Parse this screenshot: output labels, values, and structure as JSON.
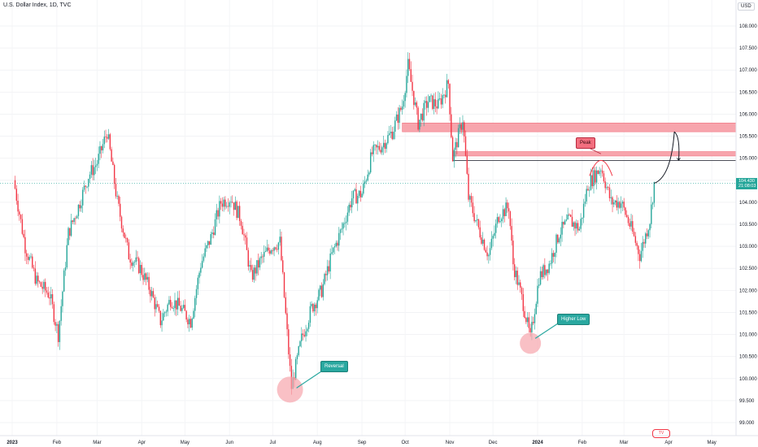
{
  "header": {
    "title": "U.S. Dollar Index, 1D, TVC",
    "currency": "USD"
  },
  "price_scale": {
    "labels": [
      "108.000",
      "107.500",
      "107.000",
      "106.500",
      "106.000",
      "105.500",
      "105.000",
      "104.500",
      "104.000",
      "103.500",
      "103.000",
      "102.500",
      "102.000",
      "101.500",
      "101.000",
      "100.500",
      "100.000",
      "99.500",
      "99.000"
    ],
    "current_price": "104.430",
    "current_countdown": "21:08:03"
  },
  "time_axis": {
    "labels": [
      "2023",
      "Feb",
      "Mar",
      "Apr",
      "May",
      "Jun",
      "Jul",
      "Aug",
      "Sep",
      "Oct",
      "Nov",
      "Dec",
      "2024",
      "Feb",
      "Mar",
      "Apr",
      "May"
    ]
  },
  "annotations": {
    "reversal": "Reversal",
    "higher_low": "Higher Low",
    "peak": "Peak"
  },
  "colors": {
    "up": "#26a69a",
    "down": "#f23645",
    "zone": "#f7a5ad",
    "callout": "#2aa8a0"
  },
  "chart_data": {
    "type": "candlestick",
    "symbol": "U.S. Dollar Index",
    "interval": "1D",
    "ylim": [
      99.0,
      108.2
    ],
    "close_path": [
      [
        "2023-01-02",
        104.5
      ],
      [
        "2023-01-10",
        103.0
      ],
      [
        "2023-01-18",
        102.2
      ],
      [
        "2023-01-27",
        101.9
      ],
      [
        "2023-02-02",
        101.0
      ],
      [
        "2023-02-09",
        103.3
      ],
      [
        "2023-02-16",
        103.9
      ],
      [
        "2023-02-23",
        104.6
      ],
      [
        "2023-03-01",
        104.9
      ],
      [
        "2023-03-08",
        105.6
      ],
      [
        "2023-03-15",
        104.0
      ],
      [
        "2023-03-23",
        102.8
      ],
      [
        "2023-03-31",
        102.5
      ],
      [
        "2023-04-07",
        102.0
      ],
      [
        "2023-04-14",
        101.3
      ],
      [
        "2023-04-21",
        101.8
      ],
      [
        "2023-04-28",
        101.6
      ],
      [
        "2023-05-05",
        101.3
      ],
      [
        "2023-05-12",
        102.6
      ],
      [
        "2023-05-19",
        103.2
      ],
      [
        "2023-05-26",
        104.0
      ],
      [
        "2023-06-02",
        104.1
      ],
      [
        "2023-06-09",
        103.6
      ],
      [
        "2023-06-16",
        102.3
      ],
      [
        "2023-06-23",
        102.7
      ],
      [
        "2023-06-30",
        103.0
      ],
      [
        "2023-07-06",
        103.1
      ],
      [
        "2023-07-12",
        100.6
      ],
      [
        "2023-07-14",
        99.8
      ],
      [
        "2023-07-21",
        100.9
      ],
      [
        "2023-07-28",
        101.6
      ],
      [
        "2023-08-04",
        102.0
      ],
      [
        "2023-08-11",
        102.8
      ],
      [
        "2023-08-18",
        103.4
      ],
      [
        "2023-08-25",
        104.1
      ],
      [
        "2023-09-01",
        104.2
      ],
      [
        "2023-09-08",
        105.1
      ],
      [
        "2023-09-15",
        105.3
      ],
      [
        "2023-09-22",
        105.6
      ],
      [
        "2023-09-29",
        106.2
      ],
      [
        "2023-10-03",
        107.1
      ],
      [
        "2023-10-10",
        105.8
      ],
      [
        "2023-10-17",
        106.3
      ],
      [
        "2023-10-24",
        106.2
      ],
      [
        "2023-10-31",
        106.7
      ],
      [
        "2023-11-03",
        105.0
      ],
      [
        "2023-11-10",
        105.9
      ],
      [
        "2023-11-14",
        104.1
      ],
      [
        "2023-11-21",
        103.4
      ],
      [
        "2023-11-28",
        102.8
      ],
      [
        "2023-12-05",
        103.7
      ],
      [
        "2023-12-12",
        103.9
      ],
      [
        "2023-12-15",
        102.6
      ],
      [
        "2023-12-22",
        101.7
      ],
      [
        "2023-12-27",
        100.9
      ],
      [
        "2024-01-02",
        102.3
      ],
      [
        "2024-01-09",
        102.6
      ],
      [
        "2024-01-16",
        103.3
      ],
      [
        "2024-01-23",
        103.6
      ],
      [
        "2024-01-30",
        103.4
      ],
      [
        "2024-02-05",
        104.4
      ],
      [
        "2024-02-14",
        104.8
      ],
      [
        "2024-02-21",
        104.0
      ],
      [
        "2024-02-28",
        104.0
      ],
      [
        "2024-03-06",
        103.4
      ],
      [
        "2024-03-12",
        102.8
      ],
      [
        "2024-03-19",
        103.6
      ],
      [
        "2024-03-22",
        104.43
      ]
    ],
    "zones": [
      {
        "from": 105.6,
        "to": 105.8
      },
      {
        "from": 105.05,
        "to": 105.15
      }
    ],
    "horizontal_lines": [
      104.95
    ],
    "projection": [
      [
        "2024-03-22",
        104.43
      ],
      [
        "2024-04-05",
        105.6
      ],
      [
        "2024-04-08",
        104.95
      ]
    ]
  }
}
